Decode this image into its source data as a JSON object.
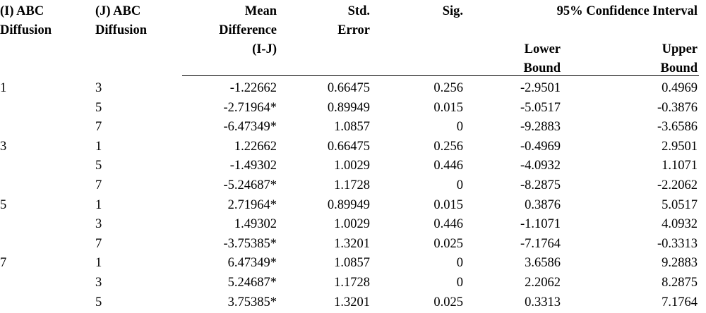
{
  "header": {
    "columns": [
      [
        "(I) ABC",
        "Diffusion"
      ],
      [
        "(J) ABC",
        "Diffusion"
      ],
      [
        "Mean",
        "Difference",
        "(I-J)"
      ],
      [
        "Std.",
        "Error"
      ],
      [
        "Sig."
      ]
    ],
    "interval": "95% Confidence Interval",
    "interval_columns": [
      [
        "Lower",
        "Bound"
      ],
      [
        "Upper",
        "Bound"
      ]
    ]
  },
  "table": {
    "groups": [
      {
        "i": "1",
        "rows": [
          [
            "3",
            "-1.22662",
            "0.66475",
            "0.256",
            "-2.9501",
            "0.4969"
          ],
          [
            "5",
            "-2.71964*",
            "0.89949",
            "0.015",
            "-5.0517",
            "-0.3876"
          ],
          [
            "7",
            "-6.47349*",
            "1.0857",
            "0",
            "-9.2883",
            "-3.6586"
          ]
        ]
      },
      {
        "i": "3",
        "rows": [
          [
            "1",
            "1.22662",
            "0.66475",
            "0.256",
            "-0.4969",
            "2.9501"
          ],
          [
            "5",
            "-1.49302",
            "1.0029",
            "0.446",
            "-4.0932",
            "1.1071"
          ],
          [
            "7",
            "-5.24687*",
            "1.1728",
            "0",
            "-8.2875",
            "-2.2062"
          ]
        ]
      },
      {
        "i": "5",
        "rows": [
          [
            "1",
            "2.71964*",
            "0.89949",
            "0.015",
            "0.3876",
            "5.0517"
          ],
          [
            "3",
            "1.49302",
            "1.0029",
            "0.446",
            "-1.1071",
            "4.0932"
          ],
          [
            "7",
            "-3.75385*",
            "1.3201",
            "0.025",
            "-7.1764",
            "-0.3313"
          ]
        ]
      },
      {
        "i": "7",
        "rows": [
          [
            "1",
            "6.47349*",
            "1.0857",
            "0",
            "3.6586",
            "9.2883"
          ],
          [
            "3",
            "5.24687*",
            "1.1728",
            "0",
            "2.2062",
            "8.2875"
          ],
          [
            "5",
            "3.75385*",
            "1.3201",
            "0.025",
            "0.3313",
            "7.1764"
          ]
        ]
      }
    ]
  }
}
